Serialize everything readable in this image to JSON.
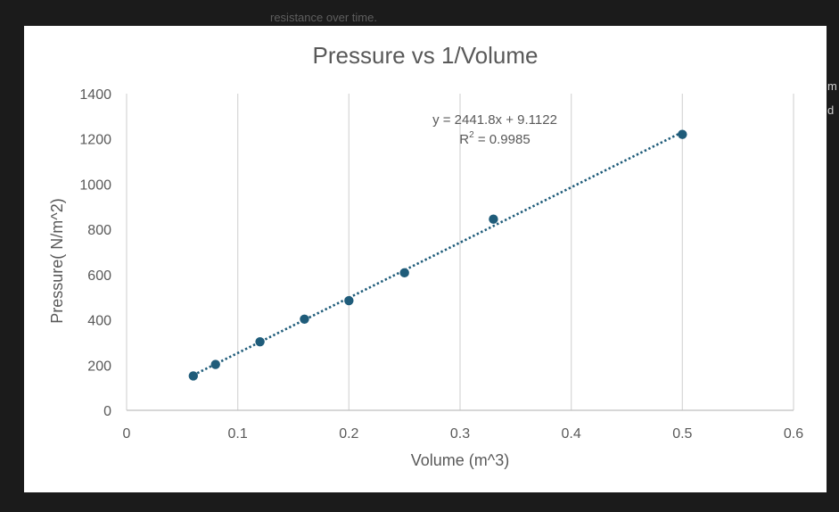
{
  "document": {
    "fragment_above": "resistance over time.",
    "right_edge_chars": [
      "m",
      "d"
    ]
  },
  "chart_data": {
    "type": "scatter",
    "title": "Pressure vs 1/Volume",
    "xlabel": "Volume (m^3)",
    "ylabel": "Pressure( N/m^2)",
    "xlim": [
      0,
      0.6
    ],
    "ylim": [
      0,
      1400
    ],
    "x_ticks": [
      "0",
      "0.1",
      "0.2",
      "0.3",
      "0.4",
      "0.5",
      "0.6"
    ],
    "y_ticks": [
      "0",
      "200",
      "400",
      "600",
      "800",
      "1000",
      "1200",
      "1400"
    ],
    "vertical_gridlines": true,
    "horizontal_gridlines": false,
    "series": [
      {
        "name": "Pressure",
        "color": "#1f5c7a",
        "x": [
          0.06,
          0.08,
          0.12,
          0.16,
          0.2,
          0.25,
          0.33,
          0.5
        ],
        "y": [
          152,
          203,
          303,
          403,
          485,
          608,
          845,
          1220
        ]
      }
    ],
    "trendline": {
      "type": "linear",
      "slope": 2441.8,
      "intercept": 9.1122,
      "x_range": [
        0.06,
        0.5
      ],
      "style": "dotted",
      "color": "#1f5c7a",
      "equation": "y = 2441.8x + 9.1122",
      "r2_prefix": "R",
      "r2_sup": "2",
      "r2_suffix": " = 0.9985"
    }
  }
}
